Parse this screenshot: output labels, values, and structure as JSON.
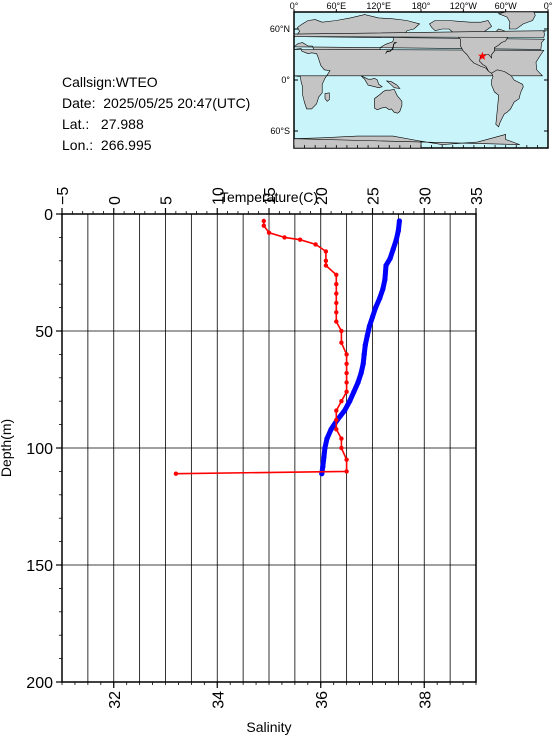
{
  "info": {
    "callsign_label": "Callsign:",
    "callsign": "WTEO",
    "date_label": "Date:",
    "date": "2025/05/25 20:47(UTC)",
    "lat_label": "Lat.:",
    "lat": "27.988",
    "lon_label": "Lon.:",
    "lon": "266.995"
  },
  "map": {
    "top_ticks": [
      "0°",
      "60°E",
      "120°E",
      "180°",
      "120°W",
      "60°W",
      "0°"
    ],
    "lat_ticks": [
      "60°N",
      "0°",
      "60°S"
    ],
    "ocean_color": "#c8f4fa",
    "land_color": "#c4c4c4",
    "marker_color": "#ff0000",
    "marker": {
      "lat": 27.988,
      "lon": 266.995
    }
  },
  "chart_data": {
    "type": "line",
    "xlabel_top": "Temperature(C)",
    "xlabel_bottom": "Salinity",
    "ylabel": "Depth(m)",
    "temperature_ticks": [
      -5,
      0,
      5,
      10,
      15,
      20,
      25,
      30,
      35
    ],
    "salinity_ticks": [
      32,
      34,
      36,
      38
    ],
    "depth_ticks": [
      0,
      50,
      100,
      150,
      200
    ],
    "temperature_range": [
      -5,
      35
    ],
    "salinity_range": [
      31,
      39
    ],
    "depth_range": [
      0,
      200
    ],
    "grid": true,
    "series": [
      {
        "axis": "temperature",
        "color": "#0000ff",
        "points": [
          [
            27.6,
            3
          ],
          [
            27.5,
            7
          ],
          [
            27.3,
            11
          ],
          [
            27.0,
            15
          ],
          [
            26.7,
            19
          ],
          [
            26.3,
            22
          ],
          [
            26.2,
            28
          ],
          [
            26.0,
            32
          ],
          [
            25.7,
            36
          ],
          [
            25.3,
            40
          ],
          [
            25.0,
            44
          ],
          [
            24.7,
            48
          ],
          [
            24.5,
            52
          ],
          [
            24.3,
            56
          ],
          [
            24.2,
            60
          ],
          [
            24.1,
            64
          ],
          [
            23.9,
            68
          ],
          [
            23.6,
            72
          ],
          [
            23.2,
            76
          ],
          [
            22.8,
            80
          ],
          [
            22.3,
            84
          ],
          [
            21.6,
            88
          ],
          [
            21.0,
            92
          ],
          [
            20.6,
            96
          ],
          [
            20.4,
            100
          ],
          [
            20.3,
            104
          ],
          [
            20.2,
            108
          ],
          [
            20.1,
            111
          ]
        ]
      },
      {
        "axis": "salinity",
        "color": "#ff0000",
        "points": [
          [
            34.9,
            3
          ],
          [
            34.9,
            5
          ],
          [
            35.0,
            8
          ],
          [
            35.3,
            10
          ],
          [
            35.6,
            11
          ],
          [
            35.9,
            13
          ],
          [
            36.1,
            16
          ],
          [
            36.1,
            20
          ],
          [
            36.1,
            22
          ],
          [
            36.3,
            26
          ],
          [
            36.3,
            30
          ],
          [
            36.3,
            34
          ],
          [
            36.3,
            38
          ],
          [
            36.3,
            42
          ],
          [
            36.3,
            46
          ],
          [
            36.4,
            50
          ],
          [
            36.4,
            55
          ],
          [
            36.5,
            60
          ],
          [
            36.5,
            64
          ],
          [
            36.5,
            68
          ],
          [
            36.5,
            72
          ],
          [
            36.5,
            76
          ],
          [
            36.4,
            80
          ],
          [
            36.3,
            84
          ],
          [
            36.3,
            88
          ],
          [
            36.3,
            92
          ],
          [
            36.4,
            96
          ],
          [
            36.4,
            100
          ],
          [
            36.5,
            105
          ],
          [
            36.5,
            110
          ],
          [
            33.2,
            111
          ]
        ]
      }
    ]
  }
}
